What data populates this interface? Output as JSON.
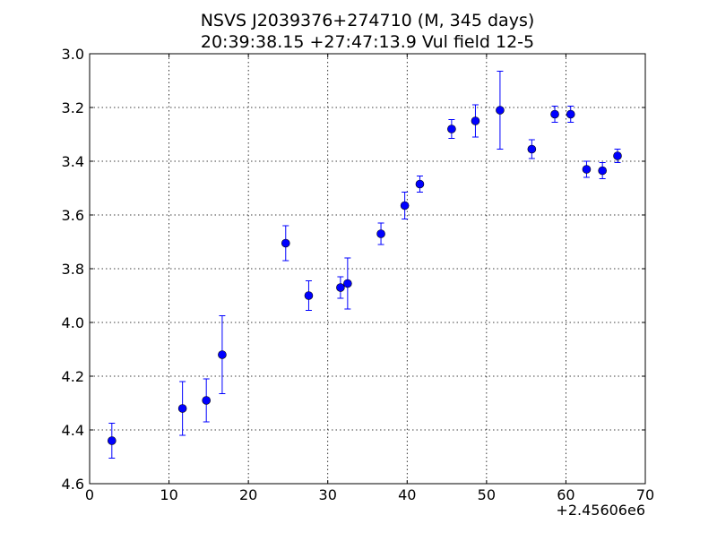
{
  "chart_data": {
    "type": "scatter",
    "title_line1": "NSVS J2039376+274710 (M, 345 days)",
    "title_line2": "20:39:38.15 +27:47:13.9 Vul field 12-5",
    "xlabel": "",
    "ylabel": "",
    "x_offset_label": "+2.45606e6",
    "xlim": [
      0,
      70
    ],
    "ylim": [
      4.6,
      3.0
    ],
    "y_inverted": true,
    "grid": true,
    "xticks": [
      "0",
      "10",
      "20",
      "30",
      "40",
      "50",
      "60",
      "70"
    ],
    "yticks": [
      "3.0",
      "3.2",
      "3.4",
      "3.6",
      "3.8",
      "4.0",
      "4.2",
      "4.4",
      "4.6"
    ],
    "marker_color": "#0000ff",
    "points": [
      {
        "x": 2.8,
        "y": 4.44,
        "err": 0.065
      },
      {
        "x": 11.7,
        "y": 4.32,
        "err": 0.1
      },
      {
        "x": 14.7,
        "y": 4.29,
        "err": 0.08
      },
      {
        "x": 16.7,
        "y": 4.12,
        "err": 0.145
      },
      {
        "x": 24.7,
        "y": 3.705,
        "err": 0.065
      },
      {
        "x": 27.6,
        "y": 3.9,
        "err": 0.055
      },
      {
        "x": 31.6,
        "y": 3.87,
        "err": 0.04
      },
      {
        "x": 32.5,
        "y": 3.855,
        "err": 0.095
      },
      {
        "x": 36.7,
        "y": 3.67,
        "err": 0.04
      },
      {
        "x": 39.7,
        "y": 3.565,
        "err": 0.05
      },
      {
        "x": 41.6,
        "y": 3.485,
        "err": 0.03
      },
      {
        "x": 45.6,
        "y": 3.28,
        "err": 0.035
      },
      {
        "x": 48.6,
        "y": 3.25,
        "err": 0.06
      },
      {
        "x": 51.7,
        "y": 3.21,
        "err": 0.145
      },
      {
        "x": 55.7,
        "y": 3.355,
        "err": 0.035
      },
      {
        "x": 58.6,
        "y": 3.225,
        "err": 0.03
      },
      {
        "x": 60.6,
        "y": 3.225,
        "err": 0.03
      },
      {
        "x": 62.6,
        "y": 3.43,
        "err": 0.03
      },
      {
        "x": 64.6,
        "y": 3.435,
        "err": 0.03
      },
      {
        "x": 66.5,
        "y": 3.38,
        "err": 0.025
      }
    ]
  }
}
